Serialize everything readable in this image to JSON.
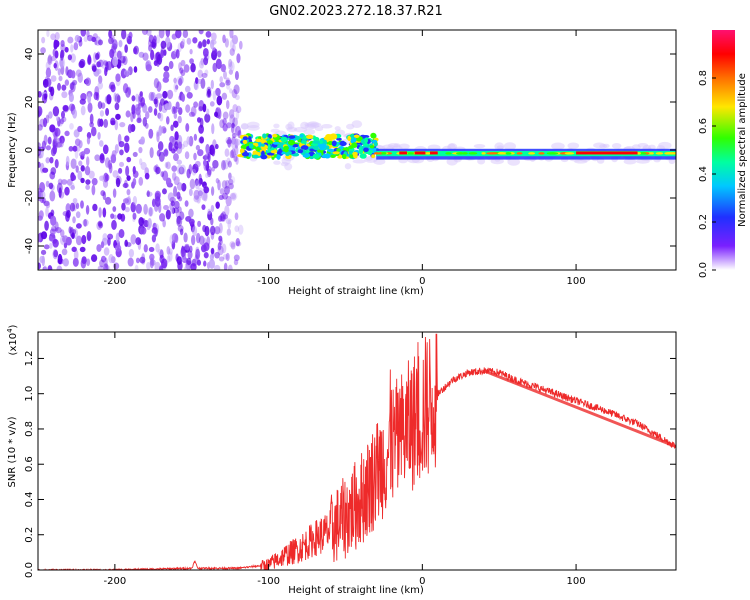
{
  "title": "GN02.2023.272.18.37.R21",
  "chart_data": [
    {
      "type": "heatmap",
      "name": "spectrogram",
      "xlabel": "Height of straight line (km)",
      "ylabel": "Frequency (Hz)",
      "xlim": [
        -250,
        165
      ],
      "ylim": [
        -50,
        50
      ],
      "xticks": [
        -200,
        -100,
        0,
        100
      ],
      "yticks": [
        -40,
        -20,
        0,
        20,
        40
      ],
      "colorbar": {
        "label": "Normalized spectral amplitude",
        "range": [
          0,
          1
        ],
        "ticks": [
          "0.0",
          "0.2",
          "0.4",
          "0.6",
          "0.8"
        ],
        "colors": [
          "#ffffff",
          "#6a00ff",
          "#2030ff",
          "#00c8ff",
          "#00ffa0",
          "#30ff00",
          "#ffe600",
          "#ff7000",
          "#ff0000",
          "#ff1070"
        ]
      },
      "description_regions": [
        {
          "x_range": [
            -250,
            -120
          ],
          "freq_range": [
            -50,
            50
          ],
          "amplitude": 0.1
        },
        {
          "x_range": [
            -120,
            -30
          ],
          "freq_range": [
            -5,
            8
          ],
          "amplitude": 0.45
        },
        {
          "x_range": [
            -30,
            165
          ],
          "freq_range": [
            -3,
            0
          ],
          "amplitude": 0.85
        }
      ]
    },
    {
      "type": "line",
      "name": "snr",
      "xlabel": "Height of straight line (km)",
      "ylabel": "SNR (10 * v/v)",
      "ylabel_multiplier": "(x10",
      "ylabel_multiplier_exp": "4",
      "ylabel_multiplier_close": ")",
      "xlim": [
        -250,
        165
      ],
      "ylim": [
        0,
        1.35
      ],
      "xticks": [
        -200,
        -100,
        0,
        100
      ],
      "yticks": [
        "0.0",
        "0.2",
        "0.4",
        "0.6",
        "0.8",
        "1.0",
        "1.2"
      ],
      "color": "#ee2a2a",
      "x": [
        -250,
        -200,
        -150,
        -148,
        -146,
        -120,
        -100,
        -90,
        -80,
        -70,
        -60,
        -50,
        -40,
        -30,
        -20,
        -10,
        0,
        10,
        20,
        30,
        40,
        50,
        60,
        80,
        100,
        120,
        140,
        165
      ],
      "y": [
        0.0,
        0.0,
        0.01,
        0.05,
        0.01,
        0.01,
        0.03,
        0.08,
        0.12,
        0.18,
        0.22,
        0.3,
        0.4,
        0.55,
        0.7,
        0.8,
        0.9,
        1.0,
        1.08,
        1.12,
        1.13,
        1.12,
        1.08,
        1.02,
        0.96,
        0.9,
        0.83,
        0.7
      ]
    }
  ]
}
